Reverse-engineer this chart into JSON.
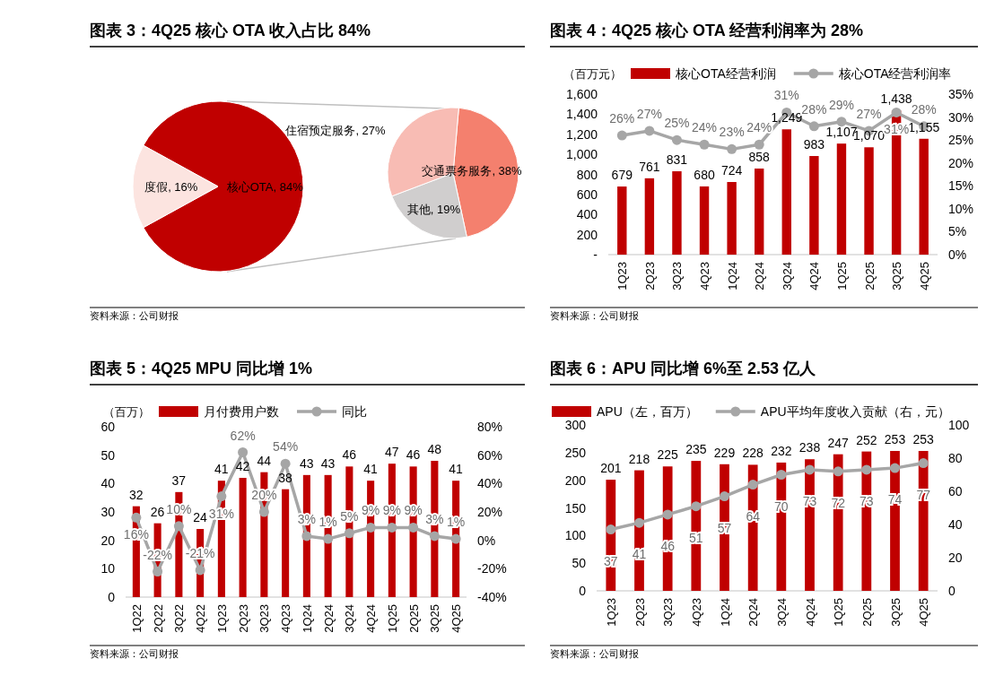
{
  "chart_data": [
    {
      "type": "pie",
      "title": "图表 3：4Q25 核心 OTA 收入占比 84%",
      "categories": [
        "核心OTA",
        "度假"
      ],
      "values": [
        84,
        16
      ],
      "value_labels": [
        "84%",
        "16%"
      ],
      "colors": [
        "#c00000",
        "#fce4e0"
      ],
      "annotations": [
        "资料来源：公司财报"
      ]
    },
    {
      "type": "pie",
      "categories": [
        "交通票务服务",
        "其他",
        "住宿预定服务"
      ],
      "values": [
        38,
        19,
        27
      ],
      "value_labels": [
        "38%",
        "19%",
        "27%"
      ],
      "colors": [
        "#f4806e",
        "#d0cece",
        "#f8bcb4"
      ]
    },
    {
      "type": "bar",
      "title": "图表 4：4Q25 核心 OTA 经营利润率为 28%",
      "ylabel": "（百万元）",
      "categories": [
        "1Q23",
        "2Q23",
        "3Q23",
        "4Q23",
        "1Q24",
        "2Q24",
        "3Q24",
        "4Q24",
        "1Q25",
        "2Q25",
        "3Q25",
        "4Q25"
      ],
      "series": [
        {
          "name": "核心OTA经营利润",
          "type": "bar",
          "color": "#c00000",
          "values": [
            679,
            761,
            831,
            680,
            724,
            858,
            1249,
            983,
            1107,
            1070,
            1438,
            1155
          ],
          "value_labels": [
            "679",
            "761",
            "831",
            "680",
            "724",
            "858",
            "1,249",
            "983",
            "1,107",
            "1,070",
            "1,438",
            "1,155"
          ]
        },
        {
          "name": "核心OTA经营利润率",
          "type": "line",
          "axis": "y2",
          "color": "#a6a6a6",
          "values": [
            26,
            27,
            25,
            24,
            23,
            24,
            31,
            28,
            29,
            27,
            31,
            28
          ],
          "value_labels": [
            "26%",
            "27%",
            "25%",
            "24%",
            "23%",
            "24%",
            "31%",
            "28%",
            "29%",
            "27%",
            "31%",
            "28%"
          ]
        }
      ],
      "ylim": [
        0,
        1600
      ],
      "yticks": [
        {
          "value": 0,
          "label": "-"
        },
        {
          "value": 200,
          "label": "200"
        },
        {
          "value": 400,
          "label": "400"
        },
        {
          "value": 600,
          "label": "600"
        },
        {
          "value": 800,
          "label": "800"
        },
        {
          "value": 1000,
          "label": "1,000"
        },
        {
          "value": 1200,
          "label": "1,200"
        },
        {
          "value": 1400,
          "label": "1,400"
        },
        {
          "value": 1600,
          "label": "1,600"
        }
      ],
      "y2lim": [
        0,
        35
      ],
      "y2ticks": [
        {
          "value": 0,
          "label": "0%"
        },
        {
          "value": 5,
          "label": "5%"
        },
        {
          "value": 10,
          "label": "10%"
        },
        {
          "value": 15,
          "label": "15%"
        },
        {
          "value": 20,
          "label": "20%"
        },
        {
          "value": 25,
          "label": "25%"
        },
        {
          "value": 30,
          "label": "30%"
        },
        {
          "value": 35,
          "label": "35%"
        }
      ],
      "marker": "circle",
      "legend": "top",
      "annotations": [
        "资料来源：公司财报"
      ]
    },
    {
      "type": "bar",
      "title": "图表 5：4Q25 MPU 同比增 1%",
      "ylabel": "（百万）",
      "categories": [
        "1Q22",
        "2Q22",
        "3Q22",
        "4Q22",
        "1Q23",
        "2Q23",
        "3Q23",
        "4Q23",
        "1Q24",
        "2Q24",
        "3Q24",
        "4Q24",
        "1Q25",
        "2Q25",
        "3Q25",
        "4Q25"
      ],
      "series": [
        {
          "name": "月付费用户数",
          "type": "bar",
          "color": "#c00000",
          "values": [
            32,
            26,
            37,
            24,
            41,
            42,
            44,
            38,
            43,
            43,
            46,
            41,
            47,
            46,
            48,
            41
          ],
          "value_labels": [
            "32",
            "26",
            "37",
            "24",
            "41",
            "42",
            "44",
            "38",
            "43",
            "43",
            "46",
            "41",
            "47",
            "46",
            "48",
            "41"
          ]
        },
        {
          "name": "同比",
          "type": "line",
          "axis": "y2",
          "color": "#a6a6a6",
          "values": [
            16,
            -22,
            10,
            -21,
            31,
            62,
            20,
            54,
            3,
            1,
            5,
            9,
            9,
            9,
            3,
            1
          ],
          "value_labels": [
            "16%",
            "-22%",
            "10%",
            "-21%",
            "31%",
            "62%",
            "20%",
            "54%",
            "3%",
            "1%",
            "5%",
            "9%",
            "9%",
            "9%",
            "3%",
            "1%"
          ]
        }
      ],
      "ylim": [
        0,
        60
      ],
      "yticks": [
        0,
        10,
        20,
        30,
        40,
        50,
        60
      ],
      "y2lim": [
        -40,
        80
      ],
      "y2ticks": [
        {
          "value": -40,
          "label": "-40%"
        },
        {
          "value": -20,
          "label": "-20%"
        },
        {
          "value": 0,
          "label": "0%"
        },
        {
          "value": 20,
          "label": "20%"
        },
        {
          "value": 40,
          "label": "40%"
        },
        {
          "value": 60,
          "label": "60%"
        },
        {
          "value": 80,
          "label": "80%"
        }
      ],
      "marker": "circle",
      "legend": "top",
      "annotations": [
        "资料来源：公司财报"
      ]
    },
    {
      "type": "bar",
      "title": "图表 6：APU 同比增 6%至 2.53 亿人",
      "categories": [
        "1Q23",
        "2Q23",
        "3Q23",
        "4Q23",
        "1Q24",
        "2Q24",
        "3Q24",
        "4Q24",
        "1Q25",
        "2Q25",
        "3Q25",
        "4Q25"
      ],
      "series": [
        {
          "name": "APU（左，百万）",
          "type": "bar",
          "color": "#c00000",
          "values": [
            201,
            218,
            225,
            235,
            229,
            228,
            232,
            238,
            247,
            252,
            253,
            253
          ]
        },
        {
          "name": "APU平均年度收入贡献（右，元）",
          "type": "line",
          "axis": "y2",
          "color": "#a6a6a6",
          "values": [
            37,
            41,
            46,
            51,
            57,
            64,
            70,
            73,
            72,
            73,
            74,
            77
          ]
        }
      ],
      "ylim": [
        0,
        300
      ],
      "yticks": [
        0,
        50,
        100,
        150,
        200,
        250,
        300
      ],
      "y2lim": [
        0,
        100
      ],
      "y2ticks": [
        0,
        20,
        40,
        60,
        80,
        100
      ],
      "data_labels": true,
      "marker": "circle",
      "legend": "top",
      "annotations": [
        "资料来源：公司财报"
      ]
    }
  ]
}
